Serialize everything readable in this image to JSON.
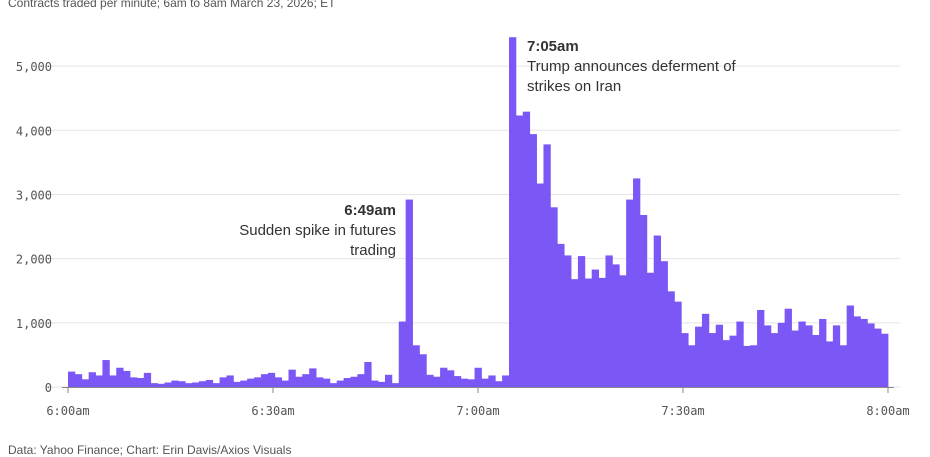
{
  "chart_data": {
    "type": "area",
    "subtitle": "Contracts traded per minute; 6am to 8am March 23, 2026; ET",
    "source": "Data: Yahoo Finance; Chart: Erin Davis/Axios Visuals",
    "x_ticks": [
      "6:00am",
      "6:30am",
      "7:00am",
      "7:30am",
      "8:00am"
    ],
    "y_ticks": [
      "0",
      "1,000",
      "2,000",
      "3,000",
      "4,000",
      "5,000"
    ],
    "ylim": [
      0,
      5500
    ],
    "x_minutes_range": [
      0,
      120
    ],
    "grid": true,
    "color": "#7b57f5",
    "series": [
      {
        "values": [
          240,
          200,
          120,
          230,
          180,
          420,
          180,
          300,
          250,
          150,
          140,
          220,
          60,
          50,
          70,
          100,
          90,
          60,
          70,
          90,
          110,
          60,
          150,
          180,
          80,
          100,
          130,
          150,
          200,
          220,
          150,
          100,
          270,
          160,
          200,
          290,
          150,
          130,
          60,
          100,
          140,
          160,
          200,
          390,
          100,
          80,
          190,
          60,
          1020,
          2920,
          650,
          510,
          190,
          160,
          300,
          260,
          170,
          130,
          120,
          300,
          130,
          180,
          90,
          180,
          5450,
          4230,
          4290,
          3940,
          3170,
          3780,
          2800,
          2230,
          2050,
          1680,
          2040,
          1690,
          1830,
          1700,
          2050,
          1910,
          1740,
          2920,
          3250,
          2680,
          1780,
          2360,
          1960,
          1490,
          1330,
          840,
          650,
          940,
          1140,
          840,
          970,
          730,
          800,
          1020,
          640,
          650,
          1200,
          960,
          840,
          1000,
          1220,
          880,
          1020,
          960,
          810,
          1060,
          710,
          960,
          650,
          1270,
          1100,
          1060,
          990,
          910,
          830
        ],
        "start_time": "6:00am",
        "interval": "1 minute"
      }
    ],
    "annotations": [
      {
        "time": "6:49am",
        "title": "6:49am",
        "lines": [
          "Sudden spike in futures",
          "trading"
        ]
      },
      {
        "time": "7:05am",
        "title": "7:05am",
        "lines": [
          "Trump announces deferment of",
          "strikes on Iran"
        ]
      }
    ]
  }
}
